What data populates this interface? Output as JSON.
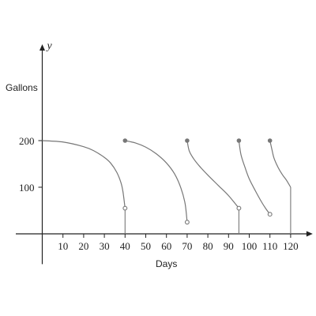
{
  "chart_data": {
    "type": "line",
    "xlabel": "Days",
    "ylabel": "Gallons",
    "x_var": "t",
    "y_var": "y",
    "xlim": [
      -5,
      128
    ],
    "ylim": [
      -65,
      395
    ],
    "x_ticks": [
      10,
      20,
      30,
      40,
      50,
      60,
      70,
      80,
      90,
      100,
      110,
      120
    ],
    "y_ticks": [
      100,
      200
    ],
    "grid": false,
    "segments": [
      {
        "points": [
          [
            0,
            200
          ],
          [
            10,
            197
          ],
          [
            20,
            187
          ],
          [
            25,
            178
          ],
          [
            30,
            164
          ],
          [
            33,
            152
          ],
          [
            36,
            132
          ],
          [
            38,
            110
          ],
          [
            39,
            90
          ],
          [
            40,
            55
          ]
        ],
        "start": "none",
        "end": "open",
        "drop_to_axis": true
      },
      {
        "points": [
          [
            40,
            200
          ],
          [
            45,
            195
          ],
          [
            50,
            186
          ],
          [
            55,
            172
          ],
          [
            60,
            152
          ],
          [
            64,
            128
          ],
          [
            67,
            98
          ],
          [
            69,
            65
          ],
          [
            70,
            25
          ]
        ],
        "start": "filled",
        "end": "open",
        "drop_to_axis": false
      },
      {
        "points": [
          [
            70,
            200
          ],
          [
            71,
            178
          ],
          [
            73,
            162
          ],
          [
            76,
            145
          ],
          [
            80,
            126
          ],
          [
            85,
            104
          ],
          [
            90,
            82
          ],
          [
            95,
            55
          ]
        ],
        "start": "filled",
        "end": "open",
        "drop_to_axis": true
      },
      {
        "points": [
          [
            95,
            200
          ],
          [
            96,
            170
          ],
          [
            98,
            142
          ],
          [
            100,
            118
          ],
          [
            103,
            92
          ],
          [
            106,
            68
          ],
          [
            108,
            54
          ],
          [
            110,
            42
          ]
        ],
        "start": "filled",
        "end": "open",
        "drop_to_axis": false
      },
      {
        "points": [
          [
            110,
            200
          ],
          [
            111,
            180
          ],
          [
            112,
            162
          ],
          [
            114,
            142
          ],
          [
            116,
            127
          ],
          [
            118,
            115
          ],
          [
            120,
            100
          ]
        ],
        "start": "filled",
        "end": "none",
        "drop_to_axis": true
      }
    ]
  }
}
